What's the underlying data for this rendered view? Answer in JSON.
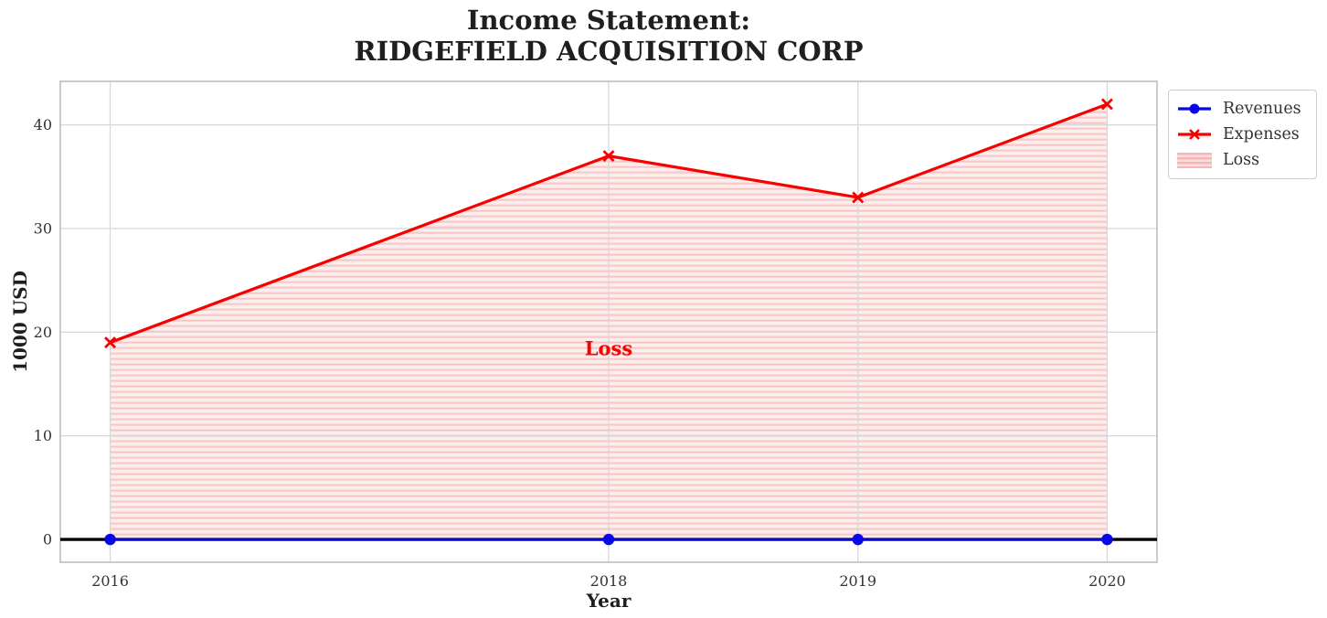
{
  "title": {
    "line1": "Income Statement:",
    "line2": "RIDGEFIELD ACQUISITION CORP"
  },
  "axis_labels": {
    "x": "Year",
    "y": "1000 USD"
  },
  "legend": {
    "items": [
      "Revenues",
      "Expenses",
      "Loss"
    ]
  },
  "colors": {
    "revenues": "#0707e8",
    "expenses": "#f80000",
    "loss_fill_base": "#fdeeee",
    "loss_fill_hatch": "#f8c6c6",
    "loss_fill_edge": "#f3b4b4",
    "annotation": "#f80000",
    "zero_line": "#000000",
    "grid": "#d8d8d8",
    "plot_border": "#c4c4c4",
    "tick_text": "#333333",
    "title_text": "#1f1f1f"
  },
  "chart_data": {
    "type": "line",
    "title": "Income Statement: RIDGEFIELD ACQUISITION CORP",
    "xlabel": "Year",
    "ylabel": "1000 USD",
    "x": [
      2016,
      2018,
      2019,
      2020
    ],
    "series": [
      {
        "name": "Revenues",
        "values": [
          0,
          0,
          0,
          0
        ],
        "color": "#0707e8",
        "marker": "circle"
      },
      {
        "name": "Expenses",
        "values": [
          19,
          37,
          33,
          42
        ],
        "color": "#f80000",
        "marker": "x"
      }
    ],
    "fill_between": {
      "name": "Loss",
      "upper_series": "Expenses",
      "lower": 0,
      "hatch": "horizontal"
    },
    "zero_line": {
      "y": 0,
      "color": "#000000"
    },
    "annotations": [
      {
        "text": "Loss",
        "x": 2018,
        "y": 18.5,
        "color": "#f80000"
      }
    ],
    "xticks": [
      2016,
      2018,
      2019,
      2020
    ],
    "yticks": [
      0,
      10,
      20,
      30,
      40
    ],
    "xlim": [
      2015.8,
      2020.2
    ],
    "ylim": [
      -2.2,
      44.2
    ],
    "grid": true,
    "legend_position": "outside upper right"
  }
}
